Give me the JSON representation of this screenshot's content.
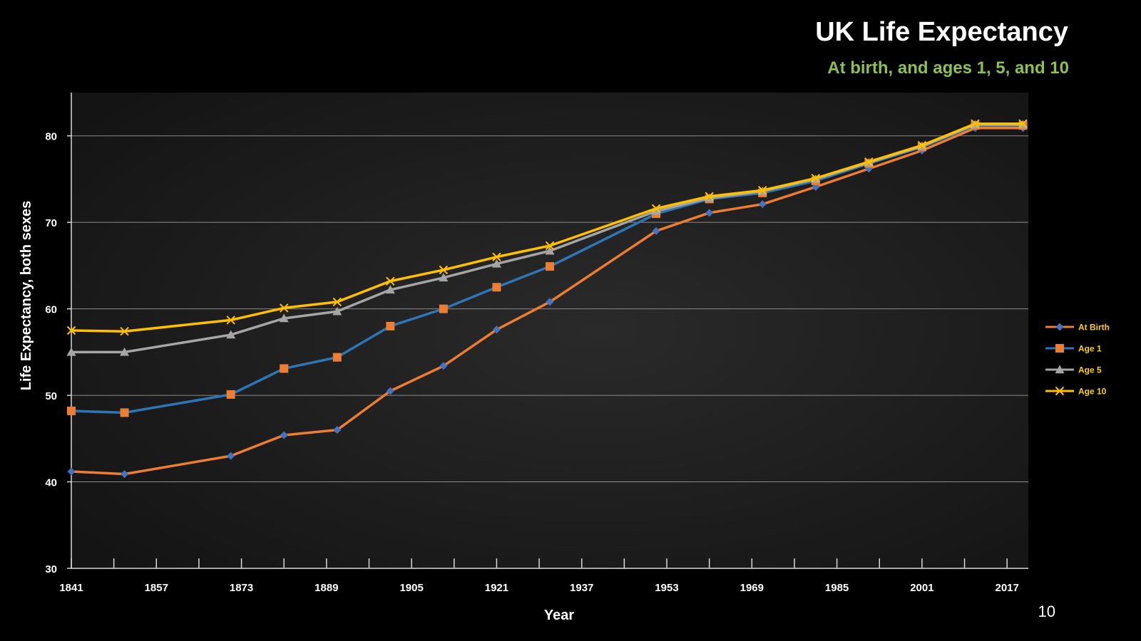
{
  "slide": {
    "title": "UK Life Expectancy",
    "subtitle": "At birth, and ages 1, 5, and 10",
    "number": "10"
  },
  "colors": {
    "background": "#000000",
    "plot_background": "#1c1c1c",
    "gridline": "#8a8a8a",
    "subtitle": "#8cc152",
    "legend_text": "#ffd200"
  },
  "chart_data": {
    "type": "line",
    "xlabel": "Year",
    "ylabel": "Life Expectancy, both sexes",
    "xlim": [
      1841,
      2021
    ],
    "ylim": [
      30,
      85
    ],
    "x_ticks": [
      1841,
      1857,
      1873,
      1889,
      1905,
      1921,
      1937,
      1953,
      1969,
      1985,
      2001,
      2017
    ],
    "y_ticks": [
      30,
      40,
      50,
      60,
      70,
      80
    ],
    "grid": "horizontal",
    "legend_position": "right",
    "x": [
      1841,
      1851,
      1871,
      1881,
      1891,
      1901,
      1911,
      1921,
      1931,
      1951,
      1961,
      1971,
      1981,
      1991,
      2001,
      2011,
      2020
    ],
    "series": [
      {
        "name": "At Birth",
        "line_color": "#ed7d31",
        "marker": "diamond",
        "marker_color": "#4472c4",
        "values": [
          41.2,
          40.9,
          43.0,
          45.4,
          46.0,
          50.5,
          53.4,
          57.6,
          60.8,
          69.0,
          71.1,
          72.1,
          74.1,
          76.2,
          78.3,
          80.9,
          80.9
        ]
      },
      {
        "name": "Age 1",
        "line_color": "#2e75b6",
        "marker": "square",
        "marker_color": "#ed7d31",
        "values": [
          48.2,
          48.0,
          50.1,
          53.1,
          54.4,
          58.0,
          60.0,
          62.5,
          64.9,
          71.0,
          72.7,
          73.4,
          74.8,
          76.8,
          78.7,
          81.2,
          81.2
        ]
      },
      {
        "name": "Age 5",
        "line_color": "#a5a5a5",
        "marker": "triangle",
        "marker_color": "#a5a5a5",
        "values": [
          55.0,
          55.0,
          57.0,
          58.9,
          59.7,
          62.2,
          63.6,
          65.2,
          66.7,
          71.3,
          72.8,
          73.6,
          75.0,
          76.9,
          78.8,
          81.3,
          81.3
        ]
      },
      {
        "name": "Age 10",
        "line_color": "#ffc000",
        "marker": "x",
        "marker_color": "#ffc000",
        "values": [
          57.5,
          57.4,
          58.7,
          60.1,
          60.8,
          63.2,
          64.5,
          66.0,
          67.3,
          71.6,
          73.0,
          73.7,
          75.1,
          77.0,
          78.9,
          81.4,
          81.4
        ]
      }
    ]
  }
}
